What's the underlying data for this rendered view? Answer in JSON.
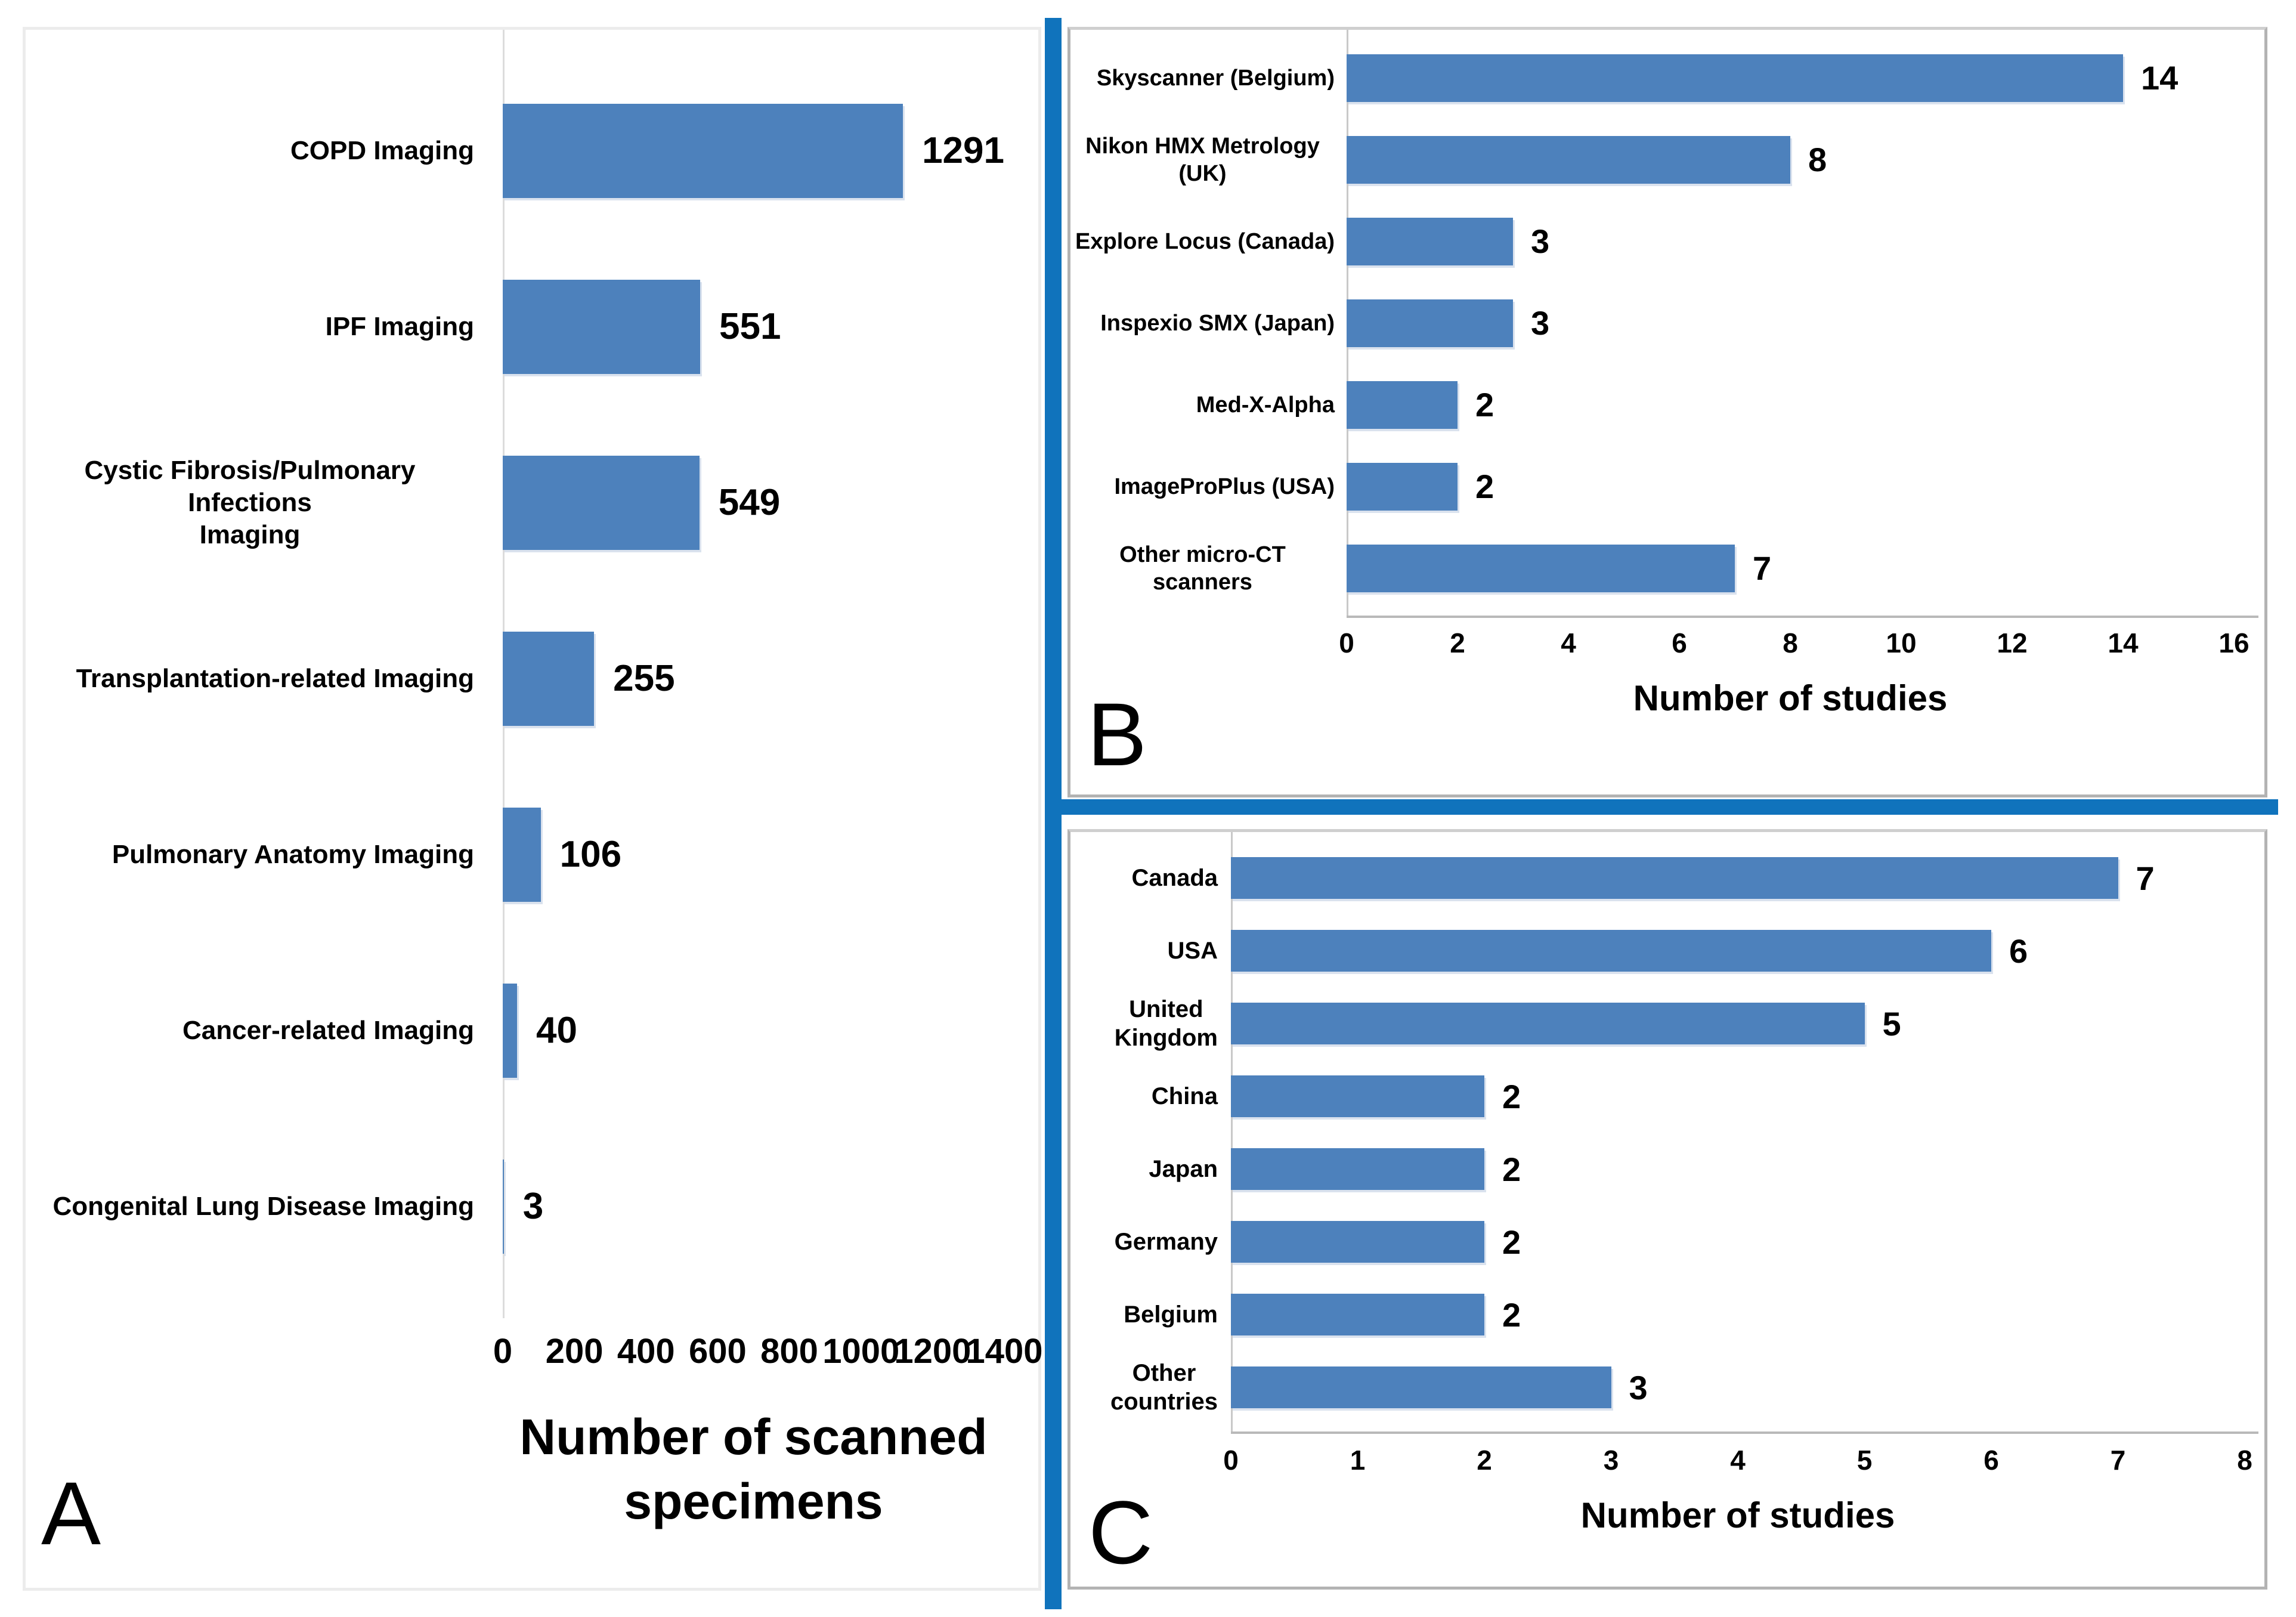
{
  "figure": {
    "bar_color": "#4D81BC",
    "divider_color": "#1073BC",
    "background_color": "#FFFFFF"
  },
  "chart_data": [
    {
      "type": "bar",
      "orientation": "horizontal",
      "panel_label": "A",
      "title": "",
      "xlabel": "Number of scanned specimens",
      "xlim": [
        0,
        1400
      ],
      "ticks": [
        0,
        200,
        400,
        600,
        800,
        1000,
        1200,
        1400
      ],
      "grid": false,
      "legend": "none",
      "categories": [
        "COPD Imaging",
        "IPF Imaging",
        "Cystic Fibrosis/Pulmonary Infections\nImaging",
        "Transplantation-related Imaging",
        "Pulmonary Anatomy Imaging",
        "Cancer-related Imaging",
        "Congenital Lung Disease Imaging"
      ],
      "values": [
        1291,
        551,
        549,
        255,
        106,
        40,
        3
      ]
    },
    {
      "type": "bar",
      "orientation": "horizontal",
      "panel_label": "B",
      "title": "",
      "xlabel": "Number of studies",
      "xlim": [
        0,
        16
      ],
      "ticks": [
        0,
        2,
        4,
        6,
        8,
        10,
        12,
        14,
        16
      ],
      "grid": false,
      "legend": "none",
      "categories": [
        "Skyscanner (Belgium)",
        "Nikon HMX Metrology (UK)",
        "Explore Locus (Canada)",
        "Inspexio SMX (Japan)",
        "Med-X-Alpha",
        "ImageProPlus (USA)",
        "Other micro-CT scanners"
      ],
      "values": [
        14,
        8,
        3,
        3,
        2,
        2,
        7
      ]
    },
    {
      "type": "bar",
      "orientation": "horizontal",
      "panel_label": "C",
      "title": "",
      "xlabel": "Number of studies",
      "xlim": [
        0,
        8
      ],
      "ticks": [
        0,
        1,
        2,
        3,
        4,
        5,
        6,
        7,
        8
      ],
      "grid": false,
      "legend": "none",
      "categories": [
        "Canada",
        "USA",
        "United\nKingdom",
        "China",
        "Japan",
        "Germany",
        "Belgium",
        "Other\ncountries"
      ],
      "values": [
        7,
        6,
        5,
        2,
        2,
        2,
        2,
        3
      ]
    }
  ]
}
